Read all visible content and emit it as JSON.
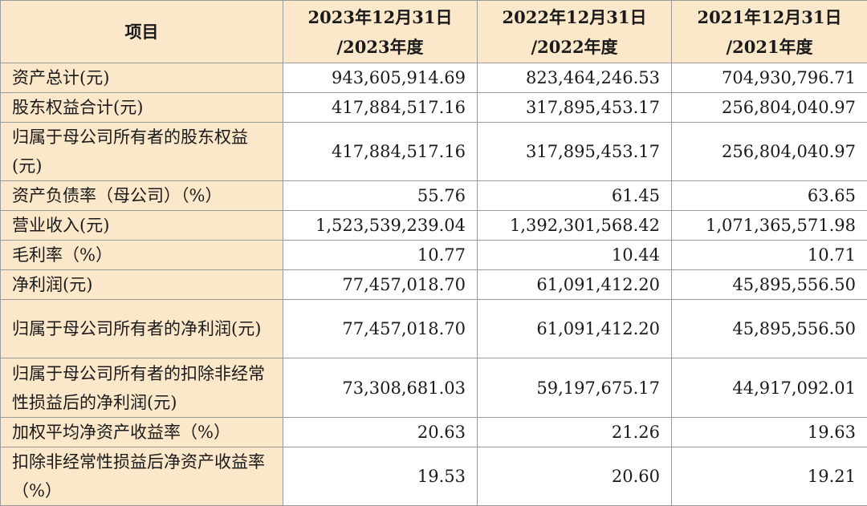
{
  "table": {
    "headers": [
      {
        "line1": "项目",
        "line2": ""
      },
      {
        "line1": "2023年12月31日",
        "line2": "/2023年度"
      },
      {
        "line1": "2022年12月31日",
        "line2": "/2022年度"
      },
      {
        "line1": "2021年12月31日",
        "line2": "/2021年度"
      }
    ],
    "rows": [
      {
        "label": "资产总计(元)",
        "v2023": "943,605,914.69",
        "v2022": "823,464,246.53",
        "v2021": "704,930,796.71"
      },
      {
        "label": "股东权益合计(元)",
        "v2023": "417,884,517.16",
        "v2022": "317,895,453.17",
        "v2021": "256,804,040.97"
      },
      {
        "label": "归属于母公司所有者的股东权益(元)",
        "v2023": "417,884,517.16",
        "v2022": "317,895,453.17",
        "v2021": "256,804,040.97"
      },
      {
        "label": "资产负债率（母公司）（%）",
        "v2023": "55.76",
        "v2022": "61.45",
        "v2021": "63.65"
      },
      {
        "label": "营业收入(元)",
        "v2023": "1,523,539,239.04",
        "v2022": "1,392,301,568.42",
        "v2021": "1,071,365,571.98"
      },
      {
        "label": "毛利率（%）",
        "v2023": "10.77",
        "v2022": "10.44",
        "v2021": "10.71"
      },
      {
        "label": "净利润(元)",
        "v2023": "77,457,018.70",
        "v2022": "61,091,412.20",
        "v2021": "45,895,556.50"
      },
      {
        "label": "归属于母公司所有者的净利润(元)",
        "v2023": "77,457,018.70",
        "v2022": "61,091,412.20",
        "v2021": "45,895,556.50"
      },
      {
        "label": "归属于母公司所有者的扣除非经常性损益后的净利润(元)",
        "v2023": "73,308,681.03",
        "v2022": "59,197,675.17",
        "v2021": "44,917,092.01"
      },
      {
        "label": "加权平均净资产收益率（%）",
        "v2023": "20.63",
        "v2022": "21.26",
        "v2021": "19.63"
      },
      {
        "label": "扣除非经常性损益后净资产收益率（%）",
        "v2023": "19.53",
        "v2022": "20.60",
        "v2021": "19.21"
      }
    ]
  }
}
